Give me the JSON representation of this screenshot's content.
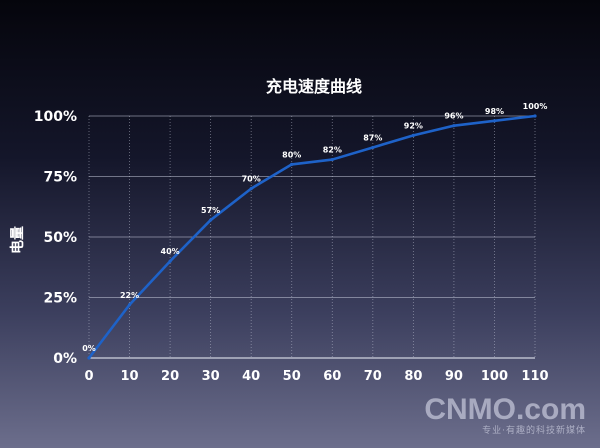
{
  "chart_data": {
    "type": "line",
    "title": "充电速度曲线",
    "ylabel": "电量",
    "xlabel": "",
    "x": [
      0,
      10,
      20,
      30,
      40,
      50,
      60,
      70,
      80,
      90,
      100,
      110
    ],
    "series": [
      {
        "values": [
          0,
          22,
          40,
          57,
          70,
          80,
          82,
          87,
          92,
          96,
          98,
          100
        ]
      }
    ],
    "data_labels": [
      "0%",
      "22%",
      "40%",
      "57%",
      "70%",
      "80%",
      "82%",
      "87%",
      "92%",
      "96%",
      "98%",
      "100%"
    ],
    "yticks": [
      "0%",
      "25%",
      "50%",
      "75%",
      "100%"
    ],
    "xticks": [
      "0",
      "10",
      "20",
      "30",
      "40",
      "50",
      "60",
      "70",
      "80",
      "90",
      "100",
      "110"
    ],
    "xlim": [
      0,
      110
    ],
    "ylim": [
      0,
      100
    ],
    "grid": "horizontal solid, vertical dotted",
    "line_color": "#1e62c8"
  },
  "watermark": {
    "main": "CNMO.com",
    "sub": "专业·有趣的科技新媒体"
  }
}
